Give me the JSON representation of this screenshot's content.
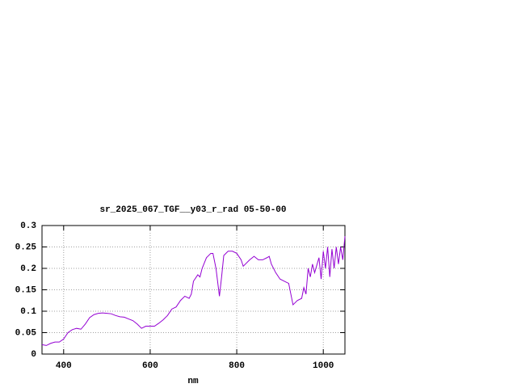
{
  "chart_data": {
    "type": "line",
    "title": "sr_2025_067_TGF__y03_r_rad 05-50-00",
    "x_label": "nm",
    "xlim": [
      350,
      1050
    ],
    "ylim": [
      0,
      0.3
    ],
    "xticks": [
      400,
      600,
      800,
      1000
    ],
    "yticks": [
      0,
      0.05,
      0.1,
      0.15,
      0.2,
      0.25,
      0.3
    ],
    "grid": true,
    "series": [
      {
        "color": "#9400d3",
        "x": [
          350,
          360,
          370,
          380,
          390,
          400,
          410,
          420,
          430,
          440,
          450,
          460,
          470,
          480,
          490,
          500,
          510,
          520,
          530,
          540,
          550,
          560,
          570,
          580,
          590,
          600,
          610,
          620,
          630,
          640,
          650,
          660,
          670,
          680,
          690,
          695,
          700,
          710,
          715,
          720,
          730,
          740,
          745,
          752,
          760,
          765,
          770,
          780,
          790,
          800,
          810,
          815,
          820,
          830,
          840,
          850,
          860,
          870,
          875,
          880,
          890,
          900,
          910,
          920,
          925,
          930,
          940,
          950,
          955,
          960,
          965,
          970,
          975,
          980,
          990,
          995,
          1000,
          1005,
          1010,
          1015,
          1020,
          1025,
          1030,
          1035,
          1040,
          1045,
          1050
        ],
        "values": [
          0.022,
          0.02,
          0.025,
          0.028,
          0.028,
          0.035,
          0.05,
          0.057,
          0.06,
          0.058,
          0.07,
          0.085,
          0.092,
          0.095,
          0.096,
          0.095,
          0.094,
          0.09,
          0.087,
          0.086,
          0.082,
          0.078,
          0.07,
          0.06,
          0.065,
          0.065,
          0.065,
          0.072,
          0.08,
          0.09,
          0.105,
          0.11,
          0.125,
          0.135,
          0.13,
          0.14,
          0.17,
          0.185,
          0.18,
          0.2,
          0.225,
          0.235,
          0.235,
          0.2,
          0.135,
          0.18,
          0.23,
          0.24,
          0.24,
          0.235,
          0.22,
          0.205,
          0.21,
          0.22,
          0.228,
          0.22,
          0.22,
          0.225,
          0.228,
          0.21,
          0.19,
          0.175,
          0.17,
          0.165,
          0.14,
          0.115,
          0.125,
          0.13,
          0.155,
          0.14,
          0.2,
          0.18,
          0.21,
          0.19,
          0.225,
          0.175,
          0.24,
          0.2,
          0.25,
          0.18,
          0.245,
          0.2,
          0.25,
          0.21,
          0.25,
          0.22,
          0.275
        ]
      }
    ]
  }
}
